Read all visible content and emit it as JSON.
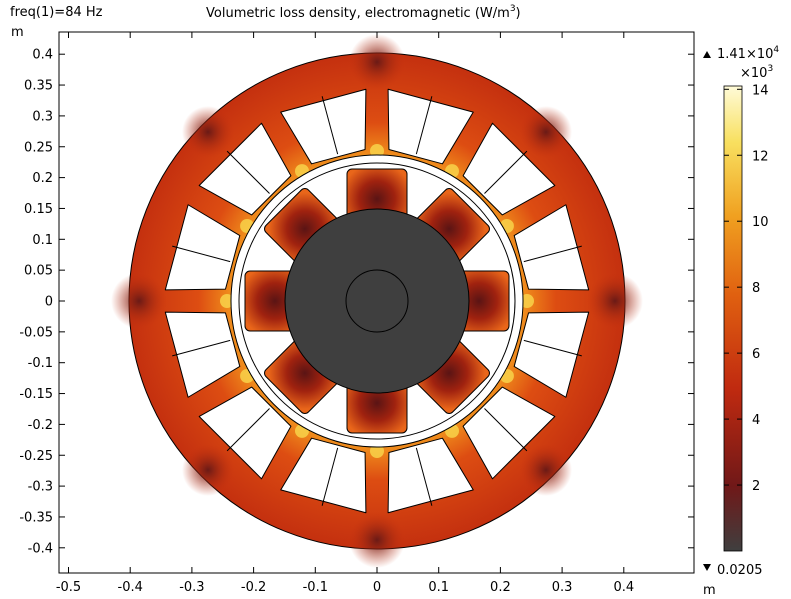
{
  "header": {
    "freq_label": "freq(1)=84 Hz",
    "title_main": "Volumetric loss density, electromagnetic (W/m",
    "title_sup": "3",
    "title_end": ")"
  },
  "axes": {
    "y_unit": "m",
    "x_unit": "m",
    "x_ticks": [
      "-0.5",
      "-0.4",
      "-0.3",
      "-0.2",
      "-0.1",
      "0",
      "0.1",
      "0.2",
      "0.3",
      "0.4"
    ],
    "y_ticks": [
      "0.4",
      "0.35",
      "0.3",
      "0.25",
      "0.2",
      "0.15",
      "0.1",
      "0.05",
      "0",
      "-0.05",
      "-0.1",
      "-0.15",
      "-0.2",
      "-0.25",
      "-0.3",
      "-0.35",
      "-0.4"
    ]
  },
  "colorbar": {
    "max_label": "1.41×10",
    "max_exp": "4",
    "scale_label": "×10",
    "scale_exp": "3",
    "min_label": "0.0205",
    "ticks": [
      "14",
      "12",
      "10",
      "8",
      "6",
      "4",
      "2"
    ],
    "colors": [
      "#3f3f3f",
      "#701818",
      "#c02a10",
      "#e06010",
      "#f0a020",
      "#f8e060",
      "#fffbd8"
    ]
  },
  "colors": {
    "stator": "#cc3a12",
    "rotor_outer": "#404040",
    "slot": "#ffffff",
    "pole_hot": "#e86a1a",
    "pole_core": "#7a1616"
  }
}
